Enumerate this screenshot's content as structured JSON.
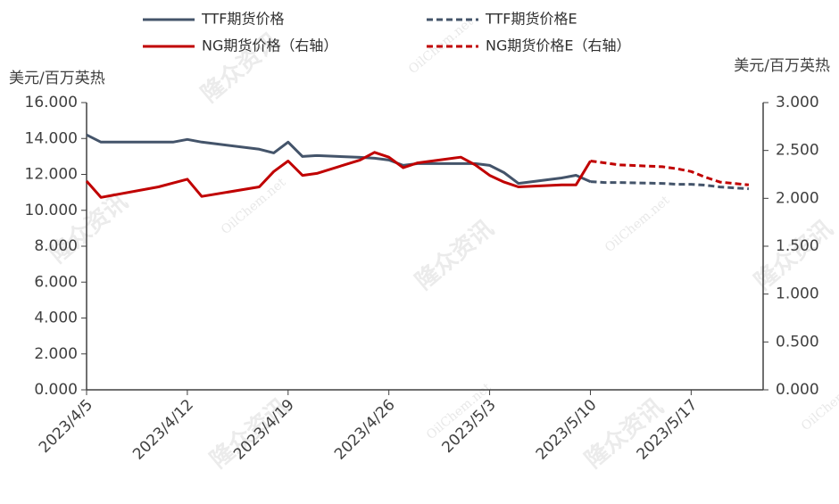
{
  "chart_data": {
    "type": "line",
    "y_label": "美元/百万英热",
    "y2_label": "美元/百万英热",
    "watermarks": [
      "隆众资讯",
      "OilChem.net"
    ],
    "xlim": [
      "2023-04-05",
      "2023-05-22"
    ],
    "xticks": [
      {
        "value": "2023-04-05",
        "label": "2023/4/5"
      },
      {
        "value": "2023-04-12",
        "label": "2023/4/12"
      },
      {
        "value": "2023-04-19",
        "label": "2023/4/19"
      },
      {
        "value": "2023-04-26",
        "label": "2023/4/26"
      },
      {
        "value": "2023-05-03",
        "label": "2023/5/3"
      },
      {
        "value": "2023-05-10",
        "label": "2023/5/10"
      },
      {
        "value": "2023-05-17",
        "label": "2023/5/17"
      }
    ],
    "ylim": [
      0,
      16
    ],
    "yticks": [
      {
        "value": 0,
        "label": "0.000"
      },
      {
        "value": 2,
        "label": "2.000"
      },
      {
        "value": 4,
        "label": "4.000"
      },
      {
        "value": 6,
        "label": "6.000"
      },
      {
        "value": 8,
        "label": "8.000"
      },
      {
        "value": 10,
        "label": "10.000"
      },
      {
        "value": 12,
        "label": "12.000"
      },
      {
        "value": 14,
        "label": "14.000"
      },
      {
        "value": 16,
        "label": "16.000"
      }
    ],
    "y2lim": [
      0,
      3
    ],
    "y2ticks": [
      {
        "value": 0,
        "label": "0.000"
      },
      {
        "value": 0.5,
        "label": "0.500"
      },
      {
        "value": 1,
        "label": "1.000"
      },
      {
        "value": 1.5,
        "label": "1.500"
      },
      {
        "value": 2,
        "label": "2.000"
      },
      {
        "value": 2.5,
        "label": "2.500"
      },
      {
        "value": 3,
        "label": "3.000"
      }
    ],
    "series": [
      {
        "name": "TTF期货价格",
        "color": "#44546a",
        "dashed": false,
        "x": [
          "2023-04-05",
          "2023-04-06",
          "2023-04-11",
          "2023-04-12",
          "2023-04-13",
          "2023-04-14",
          "2023-04-17",
          "2023-04-18",
          "2023-04-19",
          "2023-04-20",
          "2023-04-21",
          "2023-04-24",
          "2023-04-25",
          "2023-04-26",
          "2023-04-27",
          "2023-04-28",
          "2023-05-02",
          "2023-05-03",
          "2023-05-04",
          "2023-05-05",
          "2023-05-08",
          "2023-05-09",
          "2023-05-10"
        ],
        "values": [
          14.2,
          13.8,
          13.8,
          13.95,
          13.8,
          13.7,
          13.4,
          13.2,
          13.8,
          13.0,
          13.05,
          12.95,
          12.9,
          12.8,
          12.5,
          12.6,
          12.6,
          12.5,
          12.1,
          11.5,
          11.8,
          11.95,
          11.6
        ]
      },
      {
        "name": "TTF期货价格E",
        "color": "#44546a",
        "dashed": true,
        "x": [
          "2023-05-10",
          "2023-05-11",
          "2023-05-12",
          "2023-05-15",
          "2023-05-16",
          "2023-05-17",
          "2023-05-18",
          "2023-05-19",
          "2023-05-21"
        ],
        "values": [
          11.6,
          11.55,
          11.55,
          11.5,
          11.45,
          11.45,
          11.4,
          11.3,
          11.2
        ]
      },
      {
        "name": "NG期货价格（右轴）",
        "color": "#c00000",
        "dashed": false,
        "axis": "y2",
        "x": [
          "2023-04-05",
          "2023-04-06",
          "2023-04-10",
          "2023-04-11",
          "2023-04-12",
          "2023-04-13",
          "2023-04-17",
          "2023-04-18",
          "2023-04-19",
          "2023-04-20",
          "2023-04-21",
          "2023-04-24",
          "2023-04-25",
          "2023-04-26",
          "2023-04-27",
          "2023-04-28",
          "2023-05-01",
          "2023-05-02",
          "2023-05-03",
          "2023-05-04",
          "2023-05-05",
          "2023-05-08",
          "2023-05-09",
          "2023-05-10"
        ],
        "values": [
          2.18,
          2.01,
          2.12,
          2.16,
          2.2,
          2.02,
          2.12,
          2.28,
          2.39,
          2.24,
          2.26,
          2.4,
          2.48,
          2.43,
          2.32,
          2.37,
          2.43,
          2.35,
          2.24,
          2.17,
          2.12,
          2.14,
          2.14,
          2.39
        ]
      },
      {
        "name": "NG期货价格E（右轴）",
        "color": "#c00000",
        "dashed": true,
        "axis": "y2",
        "x": [
          "2023-05-10",
          "2023-05-11",
          "2023-05-12",
          "2023-05-15",
          "2023-05-16",
          "2023-05-17",
          "2023-05-18",
          "2023-05-19",
          "2023-05-21"
        ],
        "values": [
          2.39,
          2.37,
          2.35,
          2.33,
          2.31,
          2.28,
          2.22,
          2.17,
          2.14
        ]
      }
    ]
  }
}
